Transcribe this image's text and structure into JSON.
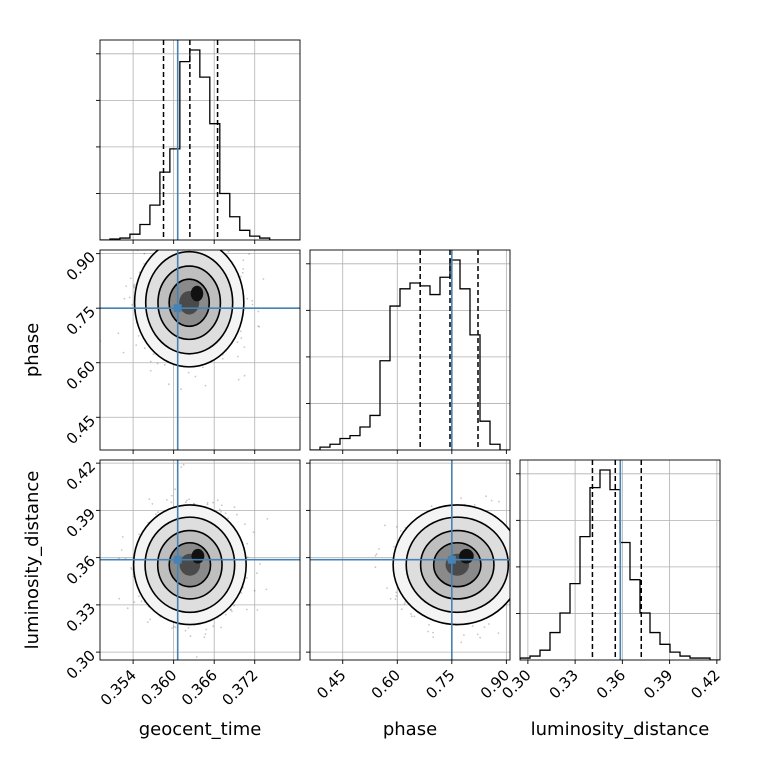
{
  "chart_data": {
    "type": "corner",
    "parameters": [
      "geocent_time",
      "phase",
      "luminosity_distance"
    ],
    "truths": {
      "geocent_time": 0.3606,
      "phase": 0.75,
      "luminosity_distance": 0.3587
    },
    "truth_color": "#4682b4",
    "ranges": {
      "geocent_time": [
        0.3491,
        0.3787
      ],
      "phase": [
        0.36,
        0.91
      ],
      "luminosity_distance": [
        0.295,
        0.422
      ]
    },
    "ticks": {
      "geocent_time": [
        "0.354",
        "0.360",
        "0.366",
        "0.372"
      ],
      "phase": [
        "0.45",
        "0.60",
        "0.75",
        "0.90"
      ],
      "luminosity_distance": [
        "0.30",
        "0.33",
        "0.36",
        "0.39",
        "0.42"
      ]
    },
    "grid": true,
    "histograms": {
      "geocent_time": {
        "bins": [
          0.3491,
          0.37865
        ],
        "counts": [
          0,
          0.5,
          1,
          3,
          8,
          18,
          35,
          47,
          92,
          98,
          84,
          60,
          24,
          12,
          5,
          2,
          1,
          0,
          0,
          0
        ],
        "quantiles": [
          0.3585,
          0.3624,
          0.3665
        ]
      },
      "phase": {
        "bins": [
          0.36,
          0.91
        ],
        "counts": [
          0,
          1,
          2,
          4,
          5,
          8,
          12,
          31,
          50,
          56,
          58,
          57,
          54,
          60,
          66,
          56,
          40,
          10,
          2,
          0
        ],
        "quantiles": [
          0.663,
          0.745,
          0.822
        ]
      },
      "luminosity_distance": {
        "bins": [
          0.295,
          0.422
        ],
        "counts": [
          1,
          2,
          5,
          14,
          24,
          39,
          63,
          88,
          97,
          87,
          60,
          41,
          24,
          14,
          8,
          4,
          2,
          1,
          1,
          0
        ],
        "quantiles": [
          0.341,
          0.3555,
          0.372
        ]
      }
    },
    "joint": [
      {
        "x": "geocent_time",
        "y": "phase",
        "mean": [
          0.3623,
          0.765
        ],
        "sd": [
          0.0033,
          0.072
        ]
      },
      {
        "x": "geocent_time",
        "y": "luminosity_distance",
        "mean": [
          0.3624,
          0.3555
        ],
        "sd": [
          0.0034,
          0.0155
        ]
      },
      {
        "x": "phase",
        "y": "luminosity_distance",
        "mean": [
          0.765,
          0.3555
        ],
        "sd": [
          0.072,
          0.0155
        ]
      }
    ]
  }
}
